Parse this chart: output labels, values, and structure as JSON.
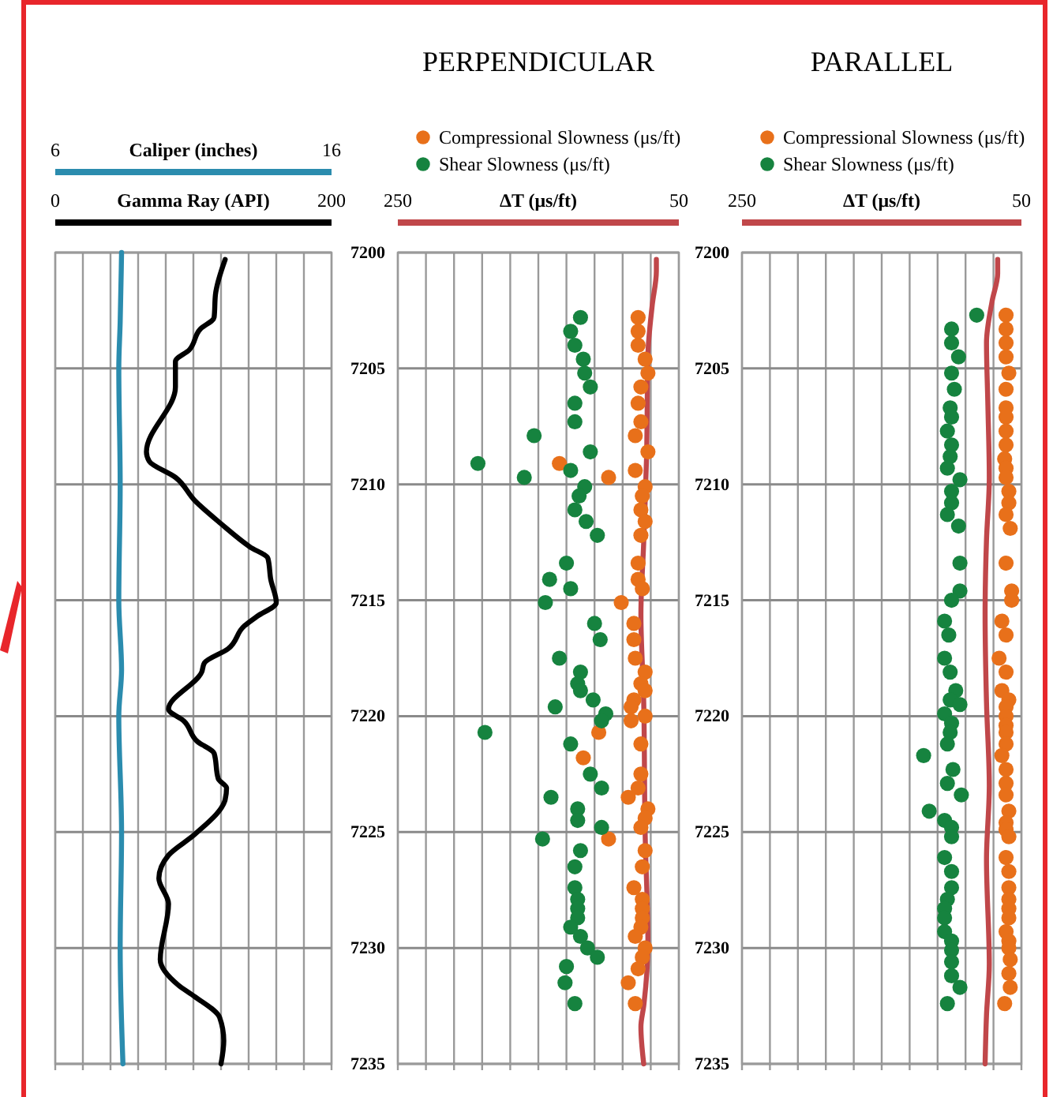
{
  "chart_data": [
    {
      "type": "line",
      "xlabel": "Gamma Ray (API)",
      "x2label": "Caliper (inches)",
      "xlim": [
        0,
        200
      ],
      "xticks": [
        0,
        {
          "value": 20,
          "label": null
        },
        {
          "value": 40,
          "label": null
        },
        {
          "value": 60,
          "label": null
        },
        {
          "value": 80,
          "label": null
        },
        {
          "value": 100,
          "label": null
        },
        {
          "value": 120,
          "label": null
        },
        {
          "value": 140,
          "label": null
        },
        {
          "value": 160,
          "label": null
        },
        {
          "value": 180,
          "label": null
        },
        200
      ],
      "x2lim": [
        6,
        16
      ],
      "x2ticks": [
        6,
        16
      ],
      "ylim": [
        7235,
        7200
      ],
      "yticks": [
        7200,
        7205,
        7210,
        7215,
        7220,
        7225,
        7230,
        7235
      ],
      "grid": true,
      "tick_labels": "x",
      "series": [
        {
          "color": "#2b8cae",
          "axis": "x2",
          "x": [
            8.4,
            8.35,
            8.3,
            8.35,
            8.3,
            8.4,
            8.3,
            8.4,
            8.35,
            8.45
          ],
          "values": [
            7200,
            7203,
            7205,
            7210,
            7215,
            7218,
            7220,
            7225,
            7230,
            7235
          ]
        },
        {
          "color": "#000000",
          "x": [
            123,
            116,
            115,
            105,
            97,
            87,
            87,
            66,
            68,
            87,
            101,
            120,
            141,
            154,
            156,
            160,
            146,
            137,
            125,
            108,
            106,
            82,
            93,
            103,
            115,
            118,
            124,
            123,
            101,
            82,
            75,
            82,
            76,
            89,
            101,
            119,
            122,
            120
          ],
          "values": [
            7200.3,
            7201.8,
            7202.8,
            7203.3,
            7204.2,
            7204.7,
            7205.8,
            7208.6,
            7209.0,
            7209.7,
            7210.7,
            7211.7,
            7212.7,
            7213.2,
            7214.1,
            7215.1,
            7215.7,
            7216.1,
            7217.1,
            7217.7,
            7218.1,
            7219.7,
            7220.2,
            7221.1,
            7221.6,
            7222.7,
            7223.1,
            7223.6,
            7225.1,
            7226.0,
            7227.0,
            7228.1,
            7230.5,
            7231.6,
            7232.1,
            7233.0,
            7234.0,
            7235
          ]
        }
      ]
    },
    {
      "type": "scatter",
      "title": "PERPENDICULAR",
      "xlabel": "ΔT (μs/ft)",
      "xlim": [
        250,
        50
      ],
      "xticks": [
        250,
        {
          "value": 230,
          "label": null
        },
        {
          "value": 210,
          "label": null
        },
        {
          "value": 190,
          "label": null
        },
        {
          "value": 170,
          "label": null
        },
        {
          "value": 150,
          "label": null
        },
        {
          "value": 130,
          "label": null
        },
        {
          "value": 110,
          "label": null
        },
        {
          "value": 90,
          "label": null
        },
        {
          "value": 70,
          "label": null
        },
        50
      ],
      "ylim": [
        7235,
        7200
      ],
      "yticks": [
        7200,
        7205,
        7210,
        7215,
        7220,
        7225,
        7230,
        7235
      ],
      "grid": true,
      "legend": "top",
      "marker": "circle",
      "series": [
        {
          "type": "line",
          "marker": "none",
          "color": "#c0474a",
          "x": [
            66,
            66,
            69,
            72,
            73,
            75,
            77,
            75,
            74,
            72,
            75,
            77,
            75
          ],
          "values": [
            7200.3,
            7200.8,
            7202.3,
            7204.4,
            7208.9,
            7212.5,
            7215.6,
            7219.4,
            7225.0,
            7229.8,
            7232.5,
            7233.4,
            7235
          ]
        },
        {
          "name": "Compressional Slowness (μs/ft)",
          "color": "#e8701a",
          "x": [
            79,
            79,
            79,
            74,
            72,
            77,
            79,
            77,
            81,
            72,
            135,
            81,
            100,
            74,
            76,
            77,
            74,
            77,
            79,
            79,
            76,
            91,
            82,
            82,
            81,
            74,
            77,
            74,
            82,
            84,
            74,
            84,
            107,
            77,
            118,
            77,
            79,
            86,
            72,
            74,
            77,
            100,
            74,
            76,
            82,
            76,
            76,
            76,
            77,
            81,
            74,
            76,
            79,
            86,
            81
          ],
          "values": [
            7202.8,
            7203.4,
            7204.0,
            7204.6,
            7205.2,
            7205.8,
            7206.5,
            7207.3,
            7207.9,
            7208.6,
            7209.1,
            7209.4,
            7209.7,
            7210.1,
            7210.5,
            7211.1,
            7211.6,
            7212.2,
            7213.4,
            7214.1,
            7214.5,
            7215.1,
            7216.0,
            7216.7,
            7217.5,
            7218.1,
            7218.6,
            7218.9,
            7219.3,
            7219.6,
            7220.0,
            7220.2,
            7220.7,
            7221.2,
            7221.8,
            7222.5,
            7223.1,
            7223.5,
            7224.0,
            7224.4,
            7224.8,
            7225.3,
            7225.8,
            7226.5,
            7227.4,
            7227.9,
            7228.3,
            7228.7,
            7229.1,
            7229.5,
            7230.0,
            7230.4,
            7230.9,
            7231.5,
            7232.4
          ]
        },
        {
          "name": "Shear Slowness (μs/ft)",
          "color": "#16833f",
          "x": [
            120,
            127,
            124,
            118,
            117,
            113,
            124,
            124,
            153,
            113,
            193,
            127,
            160,
            117,
            121,
            124,
            116,
            108,
            130,
            142,
            127,
            145,
            110,
            106,
            135,
            120,
            122,
            120,
            111,
            138,
            102,
            105,
            188,
            127,
            113,
            105,
            141,
            122,
            122,
            105,
            147,
            120,
            124,
            124,
            122,
            122,
            122,
            127,
            120,
            115,
            108,
            130,
            131,
            124
          ],
          "values": [
            7202.8,
            7203.4,
            7204.0,
            7204.6,
            7205.2,
            7205.8,
            7206.5,
            7207.3,
            7207.9,
            7208.6,
            7209.1,
            7209.4,
            7209.7,
            7210.1,
            7210.5,
            7211.1,
            7211.6,
            7212.2,
            7213.4,
            7214.1,
            7214.5,
            7215.1,
            7216.0,
            7216.7,
            7217.5,
            7218.1,
            7218.6,
            7218.9,
            7219.3,
            7219.6,
            7219.9,
            7220.2,
            7220.7,
            7221.2,
            7222.5,
            7223.1,
            7223.5,
            7224.0,
            7224.5,
            7224.8,
            7225.3,
            7225.8,
            7226.5,
            7227.4,
            7227.9,
            7228.3,
            7228.7,
            7229.1,
            7229.5,
            7230.0,
            7230.4,
            7230.8,
            7231.5,
            7232.4
          ]
        }
      ]
    },
    {
      "type": "scatter",
      "title": "PARALLEL",
      "xlabel": "ΔT (μs/ft)",
      "xlim": [
        250,
        50
      ],
      "xticks": [
        250,
        {
          "value": 230,
          "label": null
        },
        {
          "value": 210,
          "label": null
        },
        {
          "value": 190,
          "label": null
        },
        {
          "value": 170,
          "label": null
        },
        {
          "value": 150,
          "label": null
        },
        {
          "value": 130,
          "label": null
        },
        {
          "value": 110,
          "label": null
        },
        {
          "value": 90,
          "label": null
        },
        {
          "value": 70,
          "label": null
        },
        50
      ],
      "ylim": [
        7235,
        7200
      ],
      "yticks": [
        7200,
        7205,
        7210,
        7215,
        7220,
        7225,
        7230,
        7235
      ],
      "grid": true,
      "legend": "top",
      "marker": "circle",
      "series": [
        {
          "type": "line",
          "marker": "none",
          "color": "#c0474a",
          "x": [
            67,
            67,
            71,
            75,
            74,
            73,
            75,
            76,
            75,
            73,
            75,
            73,
            75,
            76
          ],
          "values": [
            7200.3,
            7200.9,
            7202.1,
            7203.9,
            7206.6,
            7209.7,
            7212.4,
            7215.6,
            7219.4,
            7223.0,
            7226.2,
            7230.7,
            7232.9,
            7235
          ]
        },
        {
          "name": "Compressional Slowness (μs/ft)",
          "color": "#e8701a",
          "x": [
            61,
            61,
            61,
            61,
            59,
            61,
            61,
            61,
            61,
            61,
            62,
            61,
            61,
            59,
            59,
            61,
            58,
            61,
            57,
            57,
            64,
            61,
            66,
            61,
            64,
            59,
            61,
            61,
            61,
            61,
            61,
            64,
            61,
            61,
            61,
            59,
            61,
            61,
            59,
            61,
            59,
            59,
            59,
            59,
            59,
            61,
            59,
            59,
            58,
            59,
            58,
            62
          ],
          "values": [
            7202.7,
            7203.3,
            7203.9,
            7204.5,
            7205.2,
            7205.9,
            7206.7,
            7207.1,
            7207.7,
            7208.3,
            7208.9,
            7209.3,
            7209.7,
            7210.3,
            7210.8,
            7211.3,
            7211.9,
            7213.4,
            7214.6,
            7215.0,
            7215.9,
            7216.5,
            7217.5,
            7218.1,
            7218.9,
            7219.3,
            7219.6,
            7220.0,
            7220.4,
            7220.7,
            7221.2,
            7221.7,
            7222.3,
            7222.9,
            7223.4,
            7224.1,
            7224.6,
            7224.9,
            7225.2,
            7226.1,
            7226.7,
            7227.4,
            7227.9,
            7228.3,
            7228.7,
            7229.3,
            7229.7,
            7230.0,
            7230.5,
            7231.1,
            7231.7,
            7232.4
          ]
        },
        {
          "name": "Shear Slowness (μs/ft)",
          "color": "#16833f",
          "x": [
            82,
            100,
            100,
            95,
            100,
            98,
            101,
            100,
            103,
            100,
            101,
            103,
            94,
            100,
            100,
            103,
            95,
            94,
            94,
            100,
            105,
            102,
            105,
            101,
            97,
            101,
            94,
            105,
            100,
            101,
            103,
            120,
            99,
            103,
            93,
            116,
            105,
            100,
            100,
            105,
            100,
            100,
            103,
            105,
            105,
            105,
            100,
            100,
            100,
            100,
            94,
            103
          ],
          "values": [
            7202.7,
            7203.3,
            7203.9,
            7204.5,
            7205.2,
            7205.9,
            7206.7,
            7207.1,
            7207.7,
            7208.3,
            7208.8,
            7209.3,
            7209.8,
            7210.3,
            7210.8,
            7211.3,
            7211.8,
            7213.4,
            7214.6,
            7215.0,
            7215.9,
            7216.5,
            7217.5,
            7218.1,
            7218.9,
            7219.3,
            7219.5,
            7219.9,
            7220.3,
            7220.7,
            7221.2,
            7221.7,
            7222.3,
            7222.9,
            7223.4,
            7224.1,
            7224.5,
            7224.8,
            7225.2,
            7226.1,
            7226.7,
            7227.4,
            7227.9,
            7228.3,
            7228.7,
            7229.3,
            7229.7,
            7230.1,
            7230.6,
            7231.2,
            7231.7,
            7232.4
          ]
        }
      ]
    }
  ]
}
